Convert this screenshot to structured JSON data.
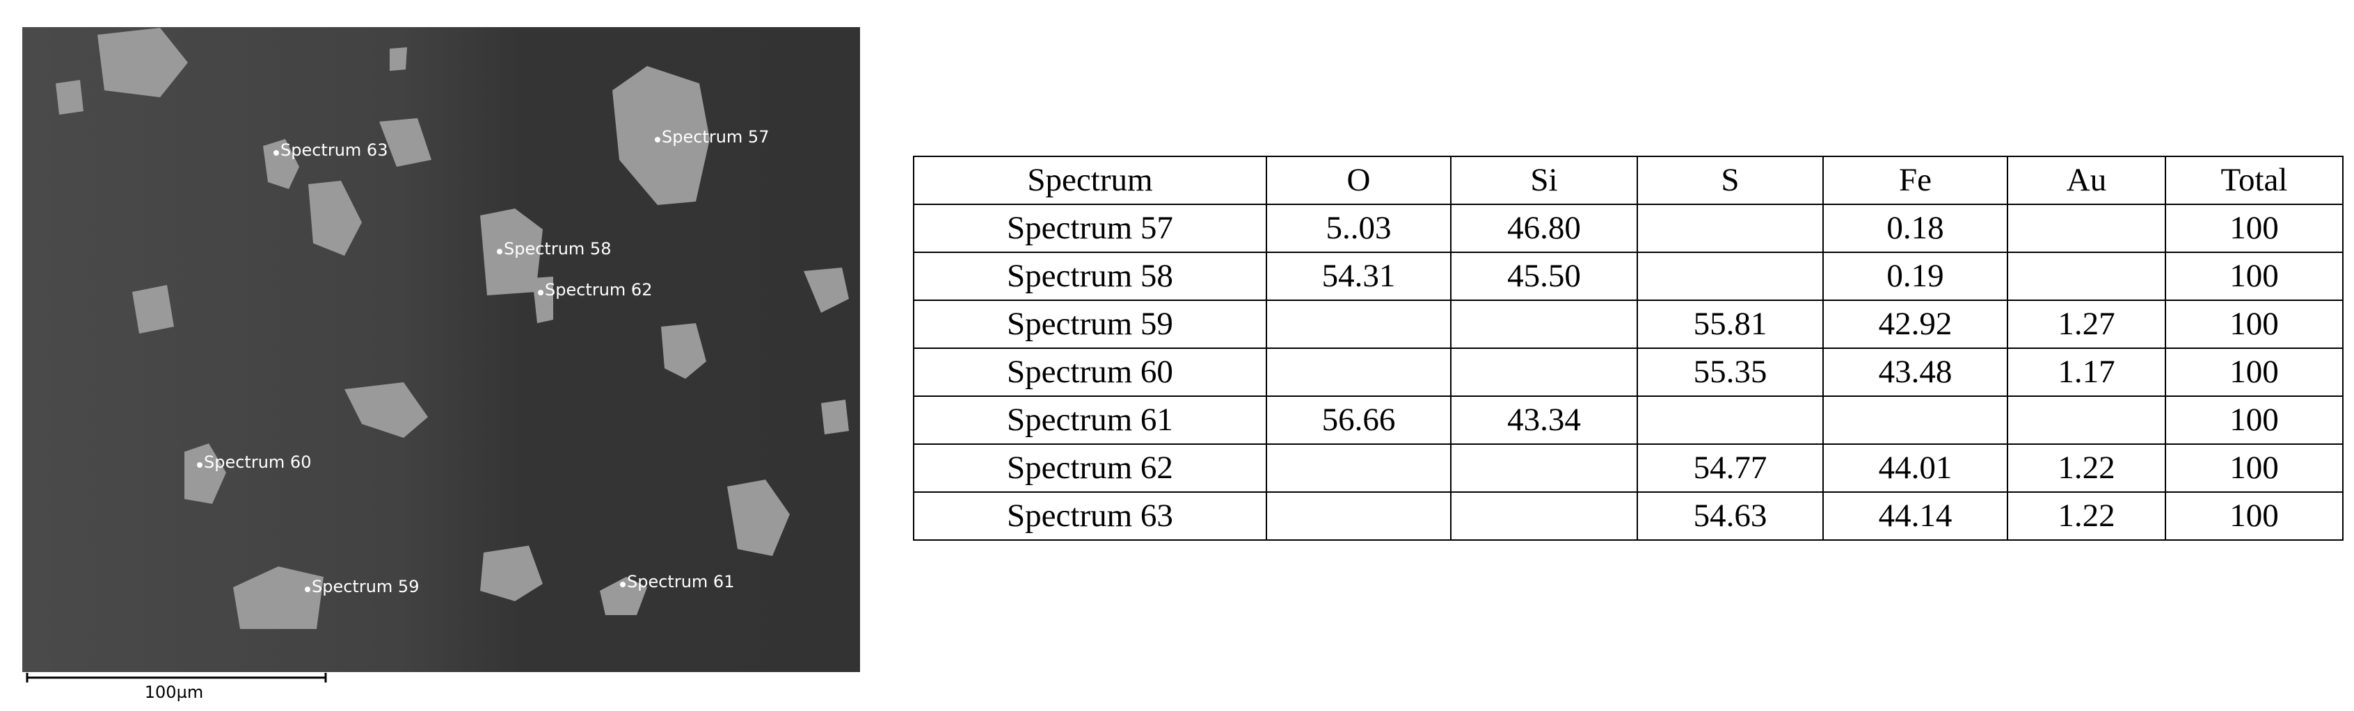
{
  "image": {
    "labels": [
      "Spectrum 63",
      "Spectrum 57",
      "Spectrum 58",
      "Spectrum 62",
      "Spectrum 60",
      "Spectrum 59",
      "Spectrum 61"
    ],
    "scale_bar": "100µm"
  },
  "table": {
    "header": [
      "Spectrum",
      "O",
      "Si",
      "S",
      "Fe",
      "Au",
      "Total"
    ],
    "rows": [
      [
        "Spectrum 57",
        "5..03",
        "46.80",
        null,
        "0.18",
        null,
        "100"
      ],
      [
        "Spectrum 58",
        "54.31",
        "45.50",
        null,
        "0.19",
        null,
        "100"
      ],
      [
        "Spectrum 59",
        null,
        null,
        "55.81",
        "42.92",
        "1.27",
        "100"
      ],
      [
        "Spectrum 60",
        null,
        null,
        "55.35",
        "43.48",
        "1.17",
        "100"
      ],
      [
        "Spectrum 61",
        "56.66",
        "43.34",
        null,
        null,
        null,
        "100"
      ],
      [
        "Spectrum 62",
        null,
        null,
        "54.77",
        "44.01",
        "1.22",
        "100"
      ],
      [
        "Spectrum 63",
        null,
        null,
        "54.63",
        "44.14",
        "1.22",
        "100"
      ]
    ]
  }
}
